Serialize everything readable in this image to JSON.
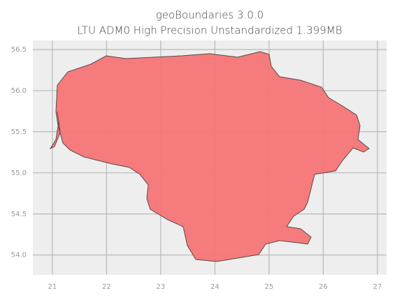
{
  "chart_data": {
    "type": "map",
    "title": "geoBoundaries 3.0.0",
    "subtitle": "LTU ADM0 High Precision Unstandardized 1.399MB",
    "color": "#f47476",
    "xlim": [
      20.64,
      27.17
    ],
    "ylim": [
      53.76,
      56.61
    ],
    "xticks": [
      21,
      22,
      23,
      24,
      25,
      26,
      27
    ],
    "yticks": [
      {
        "value": 54.0,
        "label": "54.0"
      },
      {
        "value": 54.5,
        "label": "54.5"
      },
      {
        "value": 55.0,
        "label": "55.0"
      },
      {
        "value": 55.5,
        "label": "55.5"
      },
      {
        "value": 56.0,
        "label": "56.0"
      },
      {
        "value": 56.5,
        "label": "56.5"
      }
    ],
    "grid": true
  }
}
